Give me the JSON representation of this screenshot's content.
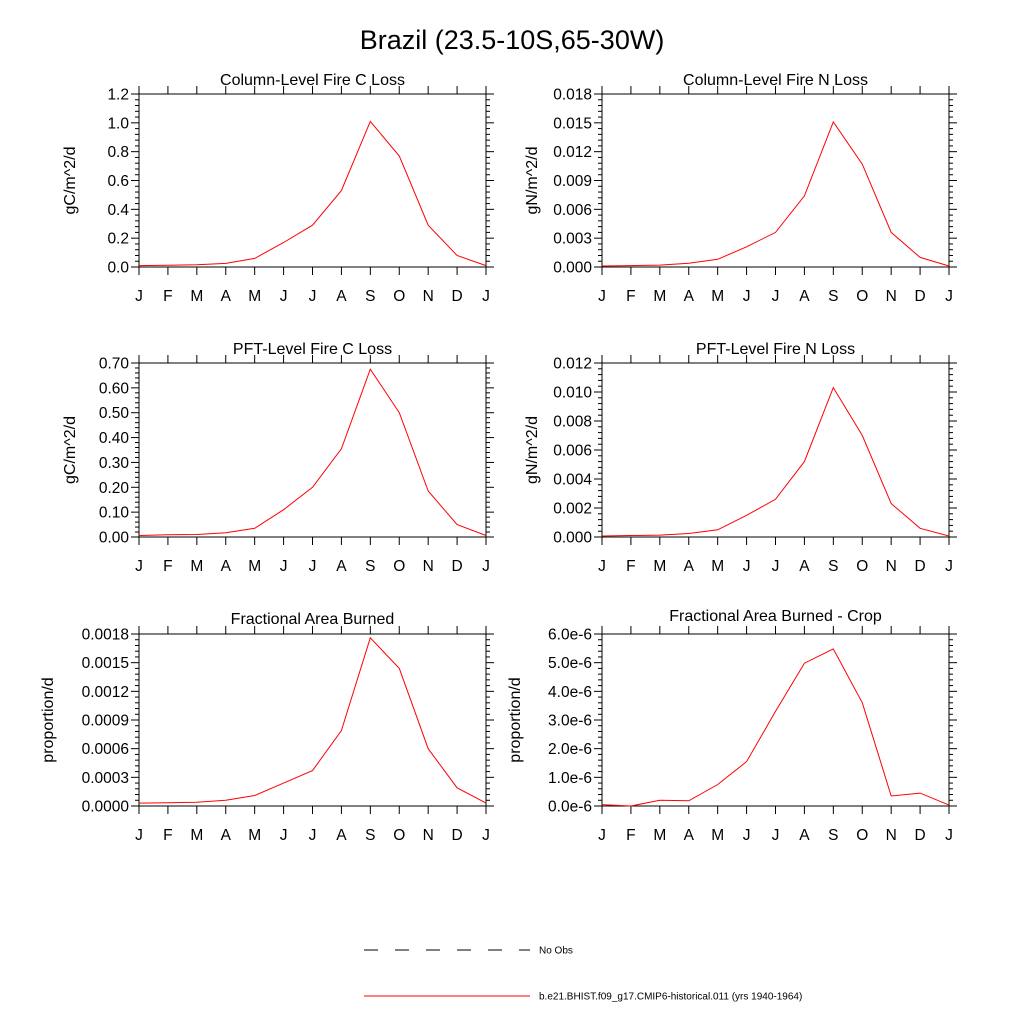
{
  "title": "Brazil (23.5-10S,65-30W)",
  "months": [
    "J",
    "F",
    "M",
    "A",
    "M",
    "J",
    "J",
    "A",
    "S",
    "O",
    "N",
    "D",
    "J"
  ],
  "chart_data": [
    {
      "type": "line",
      "title": "Column-Level Fire C Loss",
      "ylabel": "gC/m^2/d",
      "ylim": [
        0,
        1.2
      ],
      "yticks": [
        "0.0",
        "0.2",
        "0.4",
        "0.6",
        "0.8",
        "1.0",
        "1.2"
      ],
      "series": [
        {
          "values": [
            0.01,
            0.012,
            0.015,
            0.025,
            0.06,
            0.17,
            0.29,
            0.53,
            1.01,
            0.77,
            0.29,
            0.08,
            0.01
          ]
        }
      ]
    },
    {
      "type": "line",
      "title": "Column-Level Fire N Loss",
      "ylabel": "gN/m^2/d",
      "ylim": [
        0,
        0.018
      ],
      "yticks": [
        "0.000",
        "0.003",
        "0.006",
        "0.009",
        "0.012",
        "0.015",
        "0.018"
      ],
      "series": [
        {
          "values": [
            0.0001,
            0.00015,
            0.0002,
            0.0004,
            0.0008,
            0.0021,
            0.0036,
            0.0074,
            0.0151,
            0.0107,
            0.0036,
            0.001,
            0.0001
          ]
        }
      ]
    },
    {
      "type": "line",
      "title": "PFT-Level Fire C Loss",
      "ylabel": "gC/m^2/d",
      "ylim": [
        0,
        0.7
      ],
      "yticks": [
        "0.00",
        "0.10",
        "0.20",
        "0.30",
        "0.40",
        "0.50",
        "0.60",
        "0.70"
      ],
      "series": [
        {
          "values": [
            0.006,
            0.009,
            0.01,
            0.017,
            0.035,
            0.11,
            0.2,
            0.355,
            0.675,
            0.5,
            0.185,
            0.05,
            0.006
          ]
        }
      ]
    },
    {
      "type": "line",
      "title": "PFT-Level Fire N Loss",
      "ylabel": "gN/m^2/d",
      "ylim": [
        0,
        0.012
      ],
      "yticks": [
        "0.000",
        "0.002",
        "0.004",
        "0.006",
        "0.008",
        "0.010",
        "0.012"
      ],
      "series": [
        {
          "values": [
            7e-05,
            0.0001,
            0.00013,
            0.00024,
            0.0005,
            0.0015,
            0.0026,
            0.0052,
            0.0103,
            0.007,
            0.0023,
            0.0006,
            7e-05
          ]
        }
      ]
    },
    {
      "type": "line",
      "title": "Fractional Area Burned",
      "ylabel": "proportion/d",
      "ylim": [
        0,
        0.0018
      ],
      "yticks": [
        "0.0000",
        "0.0003",
        "0.0006",
        "0.0009",
        "0.0012",
        "0.0015",
        "0.0018"
      ],
      "series": [
        {
          "values": [
            3e-05,
            3.5e-05,
            4e-05,
            6e-05,
            0.00011,
            0.00024,
            0.00037,
            0.00079,
            0.00176,
            0.00144,
            0.0006,
            0.00019,
            3e-05
          ]
        }
      ]
    },
    {
      "type": "line",
      "title": "Fractional Area Burned - Crop",
      "ylabel": "proportion/d",
      "ylim": [
        0,
        6e-06
      ],
      "yticks": [
        "0.0e-6",
        "1.0e-6",
        "2.0e-6",
        "3.0e-6",
        "4.0e-6",
        "5.0e-6",
        "6.0e-6"
      ],
      "series": [
        {
          "values": [
            5e-08,
            0,
            2e-07,
            1.8e-07,
            7.5e-07,
            1.55e-06,
            3.3e-06,
            4.98e-06,
            5.48e-06,
            3.6e-06,
            3.5e-07,
            4.5e-07,
            3e-08
          ]
        }
      ]
    }
  ],
  "legend": {
    "obs_label": "No Obs",
    "model_label": "b.e21.BHIST.f09_g17.CMIP6-historical.011 (yrs 1940-1964)",
    "model_color": "#ff0000"
  }
}
